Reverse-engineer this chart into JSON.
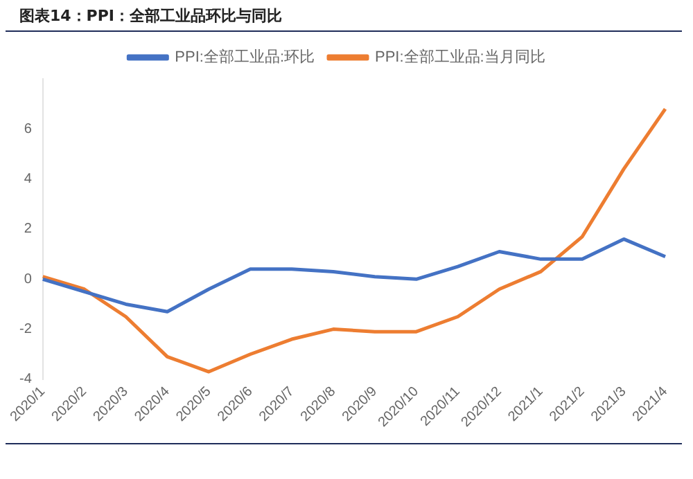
{
  "chart_data": {
    "type": "line",
    "title": "图表14：PPI：全部工业品环比与同比",
    "categories": [
      "2020/1",
      "2020/2",
      "2020/3",
      "2020/4",
      "2020/5",
      "2020/6",
      "2020/7",
      "2020/8",
      "2020/9",
      "2020/10",
      "2020/11",
      "2020/12",
      "2021/1",
      "2021/2",
      "2021/3",
      "2021/4"
    ],
    "series": [
      {
        "name": "PPI:全部工业品:环比",
        "color": "#4472c4",
        "values": [
          0.0,
          -0.5,
          -1.0,
          -1.3,
          -0.4,
          0.4,
          0.4,
          0.3,
          0.1,
          0.0,
          0.5,
          1.1,
          0.8,
          0.8,
          1.6,
          0.9
        ]
      },
      {
        "name": "PPI:全部工业品:当月同比",
        "color": "#ed7d31",
        "values": [
          0.1,
          -0.4,
          -1.5,
          -3.1,
          -3.7,
          -3.0,
          -2.4,
          -2.0,
          -2.1,
          -2.1,
          -1.5,
          -0.4,
          0.3,
          1.7,
          4.4,
          6.8
        ]
      }
    ],
    "ylim": [
      -4,
      8
    ],
    "yticks": [
      -4,
      -2,
      0,
      2,
      4,
      6
    ],
    "grid": false,
    "legend": "top",
    "marker": "none",
    "line_style": "solid"
  }
}
